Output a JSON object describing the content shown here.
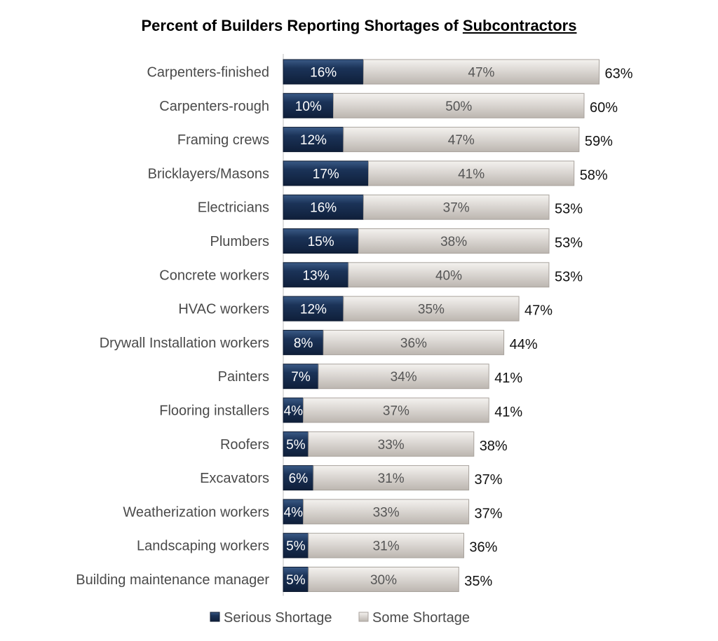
{
  "chart_data": {
    "type": "bar",
    "orientation": "horizontal",
    "stacked": true,
    "title_prefix": "Percent of Builders Reporting Shortages of ",
    "title_emphasis": "Subcontractors",
    "categories": [
      "Carpenters-finished",
      "Carpenters-rough",
      "Framing crews",
      "Bricklayers/Masons",
      "Electricians",
      "Plumbers",
      "Concrete workers",
      "HVAC workers",
      "Drywall Installation workers",
      "Painters",
      "Flooring installers",
      "Roofers",
      "Excavators",
      "Weatherization workers",
      "Landscaping workers",
      "Building maintenance manager"
    ],
    "series": [
      {
        "name": "Serious Shortage",
        "color": "#1b3358",
        "values": [
          16,
          10,
          12,
          17,
          16,
          15,
          13,
          12,
          8,
          7,
          4,
          5,
          6,
          4,
          5,
          5
        ]
      },
      {
        "name": "Some Shortage",
        "color": "#dedad6",
        "values": [
          47,
          50,
          47,
          41,
          37,
          38,
          40,
          35,
          36,
          34,
          37,
          33,
          31,
          33,
          31,
          30
        ]
      }
    ],
    "totals": [
      63,
      60,
      59,
      58,
      53,
      53,
      53,
      47,
      44,
      41,
      41,
      38,
      37,
      37,
      36,
      35
    ],
    "value_suffix": "%",
    "xlim": [
      0,
      70
    ],
    "grid": false,
    "legend_position": "bottom"
  }
}
